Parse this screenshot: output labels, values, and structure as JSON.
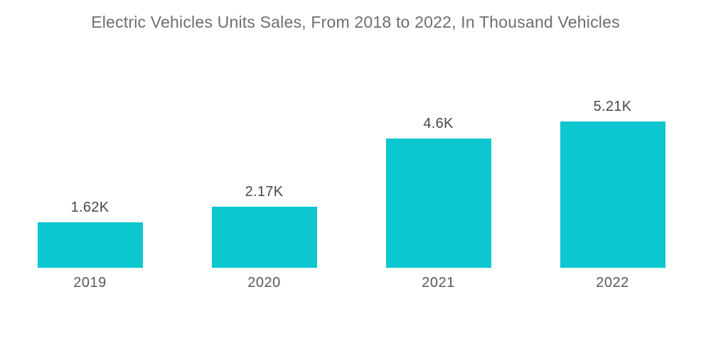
{
  "title": "Electric Vehicles Units Sales, From 2018 to 2022, In Thousand Vehicles",
  "chart_data": {
    "type": "bar",
    "title": "Electric Vehicles Units Sales, From 2018 to 2022, In Thousand Vehicles",
    "categories": [
      "2019",
      "2020",
      "2021",
      "2022"
    ],
    "values": [
      1.62,
      2.17,
      4.6,
      5.21
    ],
    "value_labels": [
      "1.62K",
      "2.17K",
      "4.6K",
      "5.21K"
    ],
    "unit": "Thousand Vehicles",
    "xlabel": "",
    "ylabel": "",
    "ylim": [
      0,
      5.5
    ],
    "grid": false,
    "legend_position": "none",
    "bar_color": "#0cc7cf",
    "title_color": "#6d6e71",
    "value_label_color": "#474747",
    "category_label_color": "#58595b",
    "background_color": "#ffffff"
  }
}
